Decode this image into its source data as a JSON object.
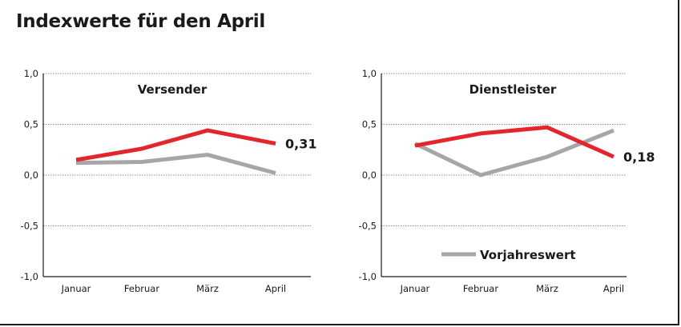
{
  "title": "Indexwerte für den April",
  "colors": {
    "current": "#e3262c",
    "previous": "#a6a6a6",
    "grid": "#8c8c8c",
    "axis": "#1a1a1a"
  },
  "legend": {
    "label": "Vorjahreswert",
    "placement": "bottom-right of second chart"
  },
  "chart_data": [
    {
      "type": "line",
      "title": "Versender",
      "categories": [
        "Januar",
        "Februar",
        "März",
        "April"
      ],
      "ylim": [
        -1.0,
        1.0
      ],
      "yticks": [
        "1,0",
        "0,5",
        "0,0",
        "-0,5",
        "-1,0"
      ],
      "grid": true,
      "series": [
        {
          "values": [
            0.15,
            0.26,
            0.44,
            0.31
          ],
          "role": "current"
        },
        {
          "name": "Vorjahreswert",
          "values": [
            0.12,
            0.13,
            0.2,
            0.02
          ],
          "role": "previous"
        }
      ],
      "end_label": "0,31"
    },
    {
      "type": "line",
      "title": "Dienstleister",
      "categories": [
        "Januar",
        "Februar",
        "März",
        "April"
      ],
      "ylim": [
        -1.0,
        1.0
      ],
      "yticks": [
        "1,0",
        "0,5",
        "0,0",
        "-0,5",
        "-1,0"
      ],
      "grid": true,
      "series": [
        {
          "values": [
            0.29,
            0.41,
            0.47,
            0.18
          ],
          "role": "current"
        },
        {
          "name": "Vorjahreswert",
          "values": [
            0.31,
            0.0,
            0.18,
            0.44
          ],
          "role": "previous"
        }
      ],
      "end_label": "0,18"
    }
  ]
}
